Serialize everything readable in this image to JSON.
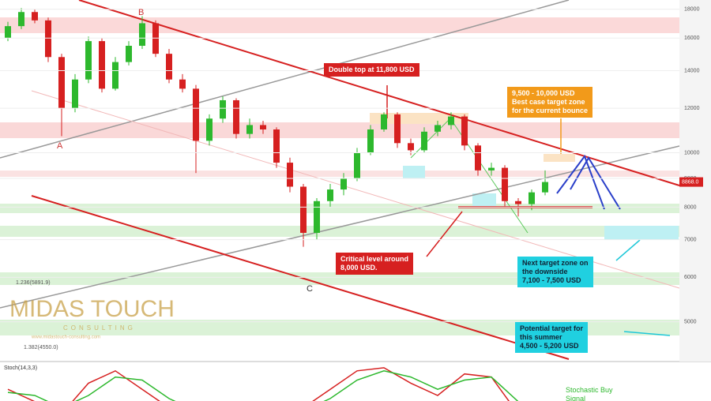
{
  "chart_data": {
    "type": "candlestick",
    "log": true,
    "open": [
      16000,
      16800,
      17800,
      17200,
      14800,
      12000,
      13500,
      15800,
      13000,
      14500,
      15500,
      17000,
      15000,
      13500,
      13000,
      10500,
      11500,
      12400,
      10800,
      11200,
      11000,
      9600,
      8700,
      7200,
      8200,
      8600,
      9000,
      10000,
      11000,
      11700,
      10400,
      10100,
      10900,
      11200,
      11600,
      10300,
      9300,
      9400,
      8200,
      8100,
      8500
    ],
    "high": [
      17100,
      18100,
      18000,
      17400,
      15000,
      13800,
      16100,
      16000,
      14800,
      15800,
      17500,
      17200,
      15300,
      13800,
      13200,
      11700,
      12600,
      12500,
      11500,
      11400,
      11100,
      9800,
      8800,
      8300,
      8800,
      9200,
      10200,
      11200,
      11800,
      11800,
      10600,
      11100,
      11400,
      11800,
      11700,
      10400,
      9600,
      9500,
      8300,
      8600,
      9300
    ],
    "low": [
      15800,
      16600,
      17000,
      14500,
      10700,
      11800,
      13300,
      12800,
      12900,
      14300,
      15300,
      14800,
      13300,
      12800,
      9200,
      10300,
      11300,
      10600,
      10600,
      10800,
      9400,
      8500,
      6800,
      7000,
      8000,
      8400,
      8900,
      9900,
      10900,
      10200,
      9900,
      10000,
      10700,
      11000,
      10100,
      9100,
      9100,
      8000,
      7700,
      7900,
      8400
    ],
    "close": [
      16800,
      17800,
      17200,
      14800,
      12000,
      13500,
      15800,
      13000,
      14500,
      15500,
      17000,
      15000,
      13500,
      13000,
      10500,
      11500,
      12400,
      10800,
      11200,
      11000,
      9600,
      8700,
      7200,
      8200,
      8600,
      9000,
      10000,
      11000,
      11700,
      10400,
      10100,
      10900,
      11200,
      11600,
      10300,
      9300,
      9400,
      8200,
      8100,
      8500,
      8868
    ],
    "up_color": "#2db82d",
    "down_color": "#d62020",
    "ylim": [
      4290,
      18700
    ],
    "yticks": [
      18000,
      16000,
      14000,
      12000,
      10000,
      9000,
      8000,
      7000,
      6000,
      5000
    ],
    "last_price": {
      "value": 8868,
      "label": "8868.0"
    },
    "critical_level": 8000,
    "points": [
      "A",
      "B",
      "C"
    ],
    "fib_labels": [
      "1.236(5891.9)",
      "1.382(4550.0)"
    ],
    "annotations": {
      "double_top": [
        "Double top at 11,800 USD"
      ],
      "best_case": [
        "9,500 - 10,000 USD",
        "Best case target zone",
        "for the current bounce"
      ],
      "critical": [
        "Critical level around",
        "8,000 USD."
      ],
      "next_target": [
        "Next target zone on",
        "the downside",
        "7,100 - 7,500 USD"
      ],
      "summer_target": [
        "Potential target for",
        "this summer",
        "4,500 - 5,200 USD"
      ],
      "stoch_signal": [
        "Stochastic Buy",
        "Signal"
      ]
    },
    "logo": {
      "name": "MIDAS TOUCH",
      "sub": "CONSULTING",
      "url": "www.midastouch-consulting.com"
    },
    "stochastic": {
      "label": "Stoch(14,3,3)",
      "ylim": [
        0,
        100
      ],
      "k": [
        60,
        40,
        20,
        70,
        90,
        60,
        30,
        20,
        40,
        15,
        10,
        30,
        60,
        90,
        95,
        70,
        50,
        85,
        80,
        20,
        15
      ],
      "d": [
        55,
        50,
        30,
        50,
        80,
        75,
        45,
        25,
        30,
        25,
        15,
        25,
        45,
        75,
        90,
        80,
        60,
        75,
        80,
        40,
        20
      ],
      "k_color": "#d62020",
      "d_color": "#2db82d"
    }
  }
}
